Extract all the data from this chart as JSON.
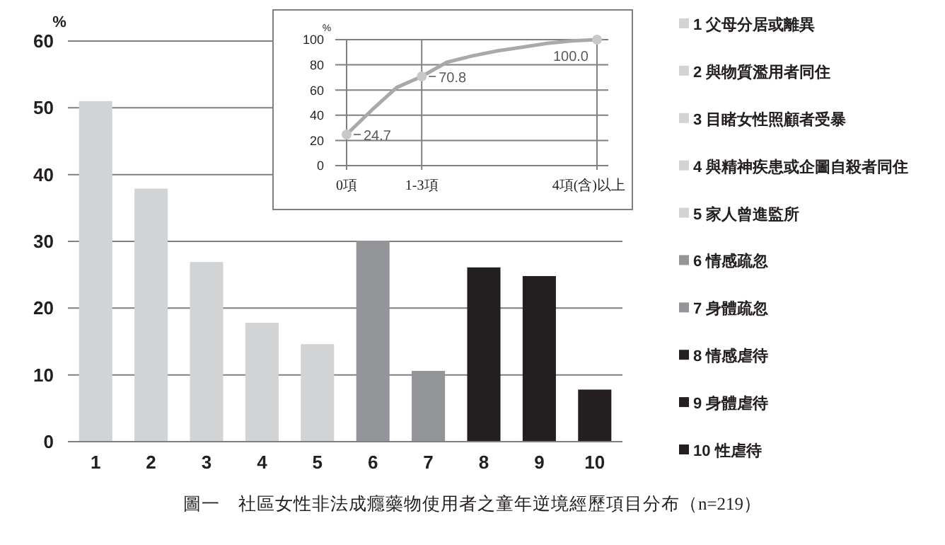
{
  "chart_data": [
    {
      "type": "bar",
      "ylabel": "%",
      "categories": [
        "1",
        "2",
        "3",
        "4",
        "5",
        "6",
        "7",
        "8",
        "9",
        "10"
      ],
      "stacked": true,
      "series": [
        {
          "name": "1 父母分居或離異",
          "color": "#d1d3d4",
          "values": [
            51.0,
            null,
            null,
            null,
            null,
            null,
            null,
            null,
            null,
            null
          ]
        },
        {
          "name": "2 與物質濫用者同住",
          "color": "#d1d3d4",
          "values": [
            null,
            37.9,
            null,
            null,
            null,
            null,
            null,
            null,
            null,
            null
          ]
        },
        {
          "name": "3 目睹女性照顧者受暴",
          "color": "#d1d3d4",
          "values": [
            null,
            null,
            26.9,
            null,
            null,
            null,
            null,
            null,
            null,
            null
          ]
        },
        {
          "name": "4 與精神疾患或企圖自殺者同住",
          "color": "#d1d3d4",
          "values": [
            null,
            null,
            null,
            17.8,
            null,
            null,
            null,
            null,
            null,
            null
          ]
        },
        {
          "name": "5 家人曾進監所",
          "color": "#d1d3d4",
          "values": [
            null,
            null,
            null,
            null,
            14.6,
            null,
            null,
            null,
            null,
            null
          ]
        },
        {
          "name": "6 情感疏忽",
          "color": "#939598",
          "values": [
            null,
            null,
            null,
            null,
            null,
            30.1,
            null,
            null,
            null,
            null
          ]
        },
        {
          "name": "7 身體疏忽",
          "color": "#939598",
          "values": [
            null,
            null,
            null,
            null,
            null,
            null,
            10.6,
            null,
            null,
            null
          ]
        },
        {
          "name": "8 情感虐待",
          "color": "#231f20",
          "values": [
            null,
            null,
            null,
            null,
            null,
            null,
            null,
            26.1,
            null,
            null
          ]
        },
        {
          "name": "9 身體虐待",
          "color": "#231f20",
          "values": [
            null,
            null,
            null,
            null,
            null,
            null,
            null,
            null,
            24.8,
            null
          ]
        },
        {
          "name": "10 性虐待",
          "color": "#231f20",
          "values": [
            null,
            null,
            null,
            null,
            null,
            null,
            null,
            null,
            null,
            7.8
          ]
        }
      ],
      "ylim": [
        0,
        60
      ],
      "yticks": [
        0,
        10,
        20,
        30,
        40,
        50,
        60
      ],
      "grid": "y",
      "legend": "right",
      "annotations": [
        "圖一　社區女性非法成癮藥物使用者之童年逆境經歷項目分布（n=219）"
      ]
    },
    {
      "type": "line",
      "ylabel": "%",
      "categories": [
        "0項",
        null,
        null,
        "1-3項",
        null,
        null,
        null,
        null,
        null,
        null,
        "4項(含)以上"
      ],
      "series": [
        {
          "type": "line",
          "color": "#a7a9ac",
          "values": [
            24.7,
            44,
            62,
            70.8,
            82,
            87,
            91,
            94,
            97,
            99,
            100.0
          ]
        },
        {
          "type": "scatter",
          "color": "#c7c8ca",
          "marker": "circle",
          "x": [
            "0項",
            "1-3項",
            "4項(含)以上"
          ],
          "values": [
            24.7,
            70.8,
            100.0
          ],
          "value_labels": [
            "24.7",
            "70.8",
            "100.0"
          ]
        }
      ],
      "ylim": [
        0,
        100
      ],
      "yticks": [
        0,
        20,
        40,
        60,
        80,
        100
      ],
      "grid": true
    }
  ]
}
